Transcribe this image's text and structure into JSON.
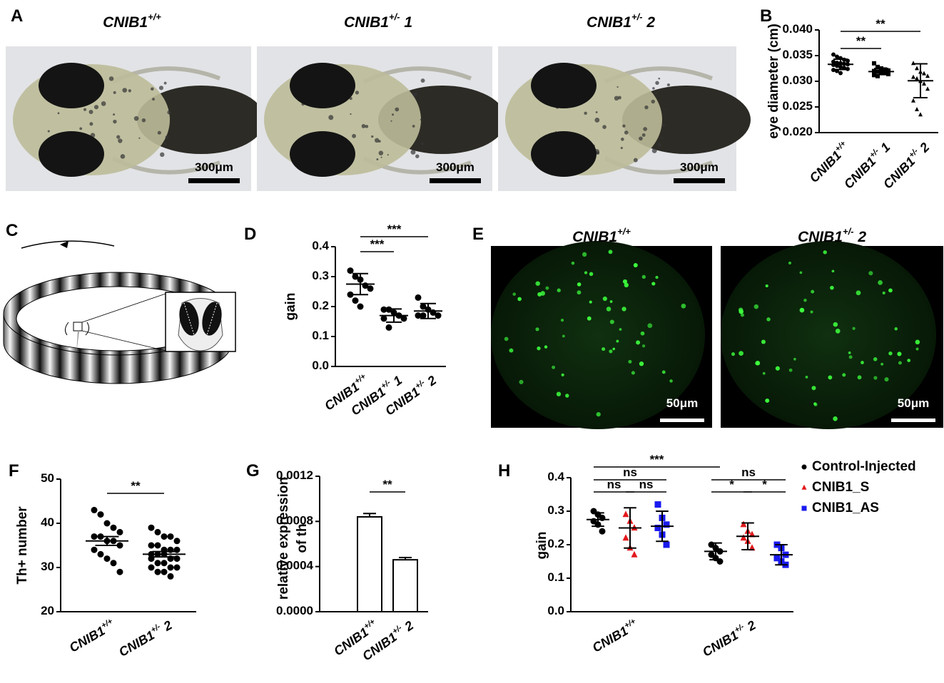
{
  "panel_labels": [
    "A",
    "B",
    "C",
    "D",
    "E",
    "F",
    "G",
    "H"
  ],
  "panel_a": {
    "titles": [
      "CNIB1+/+",
      "CNIB1+/- 1",
      "CNIB1+/- 2"
    ],
    "scale_bars": [
      "300μm",
      "300μm",
      "300μm"
    ]
  },
  "panel_e": {
    "titles": [
      "CNIB1+/+",
      "CNIB1+/- 2"
    ],
    "scale_bars": [
      "50μm",
      "50μm"
    ]
  },
  "chart_data": [
    {
      "type": "dotplot",
      "y_label": "eye diameter (cm)",
      "categories": [
        "CNIB1+/+",
        "CNIB1+/- 1",
        "CNIB1+/- 2"
      ],
      "markers": [
        "circle",
        "square",
        "triangle"
      ],
      "color": "#000000",
      "points": [
        [
          0.0352,
          0.0348,
          0.0345,
          0.0342,
          0.034,
          0.0338,
          0.0336,
          0.0335,
          0.0334,
          0.0333,
          0.0332,
          0.033,
          0.0328,
          0.0326,
          0.0324,
          0.0322,
          0.032,
          0.0316
        ],
        [
          0.0335,
          0.0328,
          0.0325,
          0.0323,
          0.0321,
          0.032,
          0.0319,
          0.0318,
          0.0316,
          0.0314,
          0.0312,
          0.031
        ],
        [
          0.0335,
          0.0325,
          0.0318,
          0.0315,
          0.031,
          0.0308,
          0.0305,
          0.03,
          0.0295,
          0.0285,
          0.0262,
          0.0245,
          0.0235
        ]
      ],
      "mean": [
        0.0333,
        0.0319,
        0.0301
      ],
      "error": [
        0.001,
        0.0006,
        0.0033
      ],
      "ylim": [
        0.02,
        0.04
      ],
      "yticks": [
        {
          "value": 0.02,
          "label": "0.020"
        },
        {
          "value": 0.025,
          "label": "0.025"
        },
        {
          "value": 0.03,
          "label": "0.030"
        },
        {
          "value": 0.035,
          "label": "0.035"
        },
        {
          "value": 0.04,
          "label": "0.040"
        }
      ],
      "significance": [
        {
          "pair": [
            0,
            1
          ],
          "label": "**"
        },
        {
          "pair": [
            0,
            2
          ],
          "label": "**"
        }
      ]
    },
    {
      "type": "dotplot",
      "y_label": "gain",
      "categories": [
        "CNIB1+/+",
        "CNIB1+/- 1",
        "CNIB1+/- 2"
      ],
      "markers": [
        "circle",
        "circle",
        "circle"
      ],
      "color": "#000000",
      "points": [
        [
          0.32,
          0.3,
          0.29,
          0.27,
          0.26,
          0.24,
          0.22,
          0.2
        ],
        [
          0.19,
          0.19,
          0.18,
          0.17,
          0.16,
          0.16,
          0.13
        ],
        [
          0.23,
          0.2,
          0.19,
          0.18,
          0.17,
          0.17,
          0.17
        ]
      ],
      "mean": [
        0.275,
        0.17,
        0.185
      ],
      "error": [
        0.035,
        0.022,
        0.025
      ],
      "ylim": [
        0,
        0.4
      ],
      "yticks": [
        {
          "value": 0,
          "label": "0.0"
        },
        0.1,
        0.2,
        0.3,
        0.4
      ],
      "significance": [
        {
          "pair": [
            0,
            1
          ],
          "label": "***"
        },
        {
          "pair": [
            0,
            2
          ],
          "label": "***"
        }
      ]
    },
    {
      "type": "dotplot",
      "y_label": "Th+ number",
      "categories": [
        "CNIB1+/+",
        "CNIB1+/- 2"
      ],
      "markers": [
        "circle",
        "circle"
      ],
      "color": "#000000",
      "points": [
        [
          43,
          42,
          40,
          39,
          38,
          37,
          37,
          36,
          36,
          35,
          34,
          33,
          32,
          31,
          29
        ],
        [
          39,
          38,
          37,
          37,
          36,
          35,
          35,
          34,
          34,
          34,
          33,
          33,
          33,
          32,
          32,
          32,
          31,
          31,
          30,
          30,
          30,
          29,
          29,
          28
        ]
      ],
      "mean": [
        36,
        33
      ],
      "error": [
        1,
        0.6
      ],
      "ylim": [
        20,
        50
      ],
      "yticks": [
        20,
        30,
        40,
        50
      ],
      "significance": [
        {
          "pair": [
            0,
            1
          ],
          "label": "**"
        }
      ]
    },
    {
      "type": "bar",
      "y_label": [
        "relative expression",
        "of th"
      ],
      "categories": [
        "CNIB1+/+",
        "CNIB1+/- 2"
      ],
      "values": [
        0.00084,
        0.00046
      ],
      "errors": [
        3e-05,
        2e-05
      ],
      "color": "#ffffff",
      "ylim": [
        0,
        0.0012
      ],
      "yticks": [
        {
          "value": 0,
          "label": "0.0000"
        },
        {
          "value": 0.0004,
          "label": "0.0004"
        },
        {
          "value": 0.0008,
          "label": "0.0008"
        },
        {
          "value": 0.0012,
          "label": "0.0012"
        }
      ],
      "significance": [
        {
          "pair": [
            0,
            1
          ],
          "label": "**"
        }
      ]
    },
    {
      "type": "grouped_dotplot",
      "y_label": "gain",
      "categories": [
        "CNIB1+/+",
        "CNIB1+/- 2"
      ],
      "series": [
        {
          "name": "Control-Injected",
          "color": "#000000",
          "marker": "circle",
          "points": [
            [
              0.3,
              0.29,
              0.28,
              0.27,
              0.26,
              0.24
            ],
            [
              0.2,
              0.19,
              0.18,
              0.17,
              0.16,
              0.15
            ]
          ],
          "mean": [
            0.275,
            0.18
          ],
          "error": [
            0.02,
            0.025
          ]
        },
        {
          "name": "CNIB1_S",
          "color": "#e3191c",
          "marker": "triangle",
          "points": [
            [
              0.29,
              0.27,
              0.25,
              0.22,
              0.19,
              0.17
            ],
            [
              0.26,
              0.24,
              0.23,
              0.22,
              0.21,
              0.19
            ]
          ],
          "mean": [
            0.25,
            0.225
          ],
          "error": [
            0.06,
            0.04
          ]
        },
        {
          "name": "CNIB1_AS",
          "color": "#1a1aef",
          "marker": "square",
          "points": [
            [
              0.32,
              0.28,
              0.26,
              0.25,
              0.23,
              0.2
            ],
            [
              0.2,
              0.19,
              0.17,
              0.16,
              0.15,
              0.14
            ]
          ],
          "mean": [
            0.255,
            0.17
          ],
          "error": [
            0.045,
            0.03
          ]
        }
      ],
      "ylim": [
        0,
        0.4
      ],
      "yticks": [
        {
          "value": 0,
          "label": "0.0"
        },
        0.1,
        0.2,
        0.3,
        0.4
      ],
      "significance": [
        {
          "pair": [
            [
              0,
              0
            ],
            [
              1,
              0
            ]
          ],
          "label": "***"
        },
        {
          "pair": [
            [
              0,
              0
            ],
            [
              0,
              2
            ]
          ],
          "label": "ns"
        },
        {
          "pair": [
            [
              0,
              0
            ],
            [
              0,
              1
            ]
          ],
          "label": "ns"
        },
        {
          "pair": [
            [
              0,
              1
            ],
            [
              0,
              2
            ]
          ],
          "label": "ns"
        },
        {
          "pair": [
            [
              1,
              0
            ],
            [
              1,
              2
            ]
          ],
          "label": "ns"
        },
        {
          "pair": [
            [
              1,
              0
            ],
            [
              1,
              1
            ]
          ],
          "label": "*"
        },
        {
          "pair": [
            [
              1,
              1
            ],
            [
              1,
              2
            ]
          ],
          "label": "*"
        }
      ]
    }
  ]
}
